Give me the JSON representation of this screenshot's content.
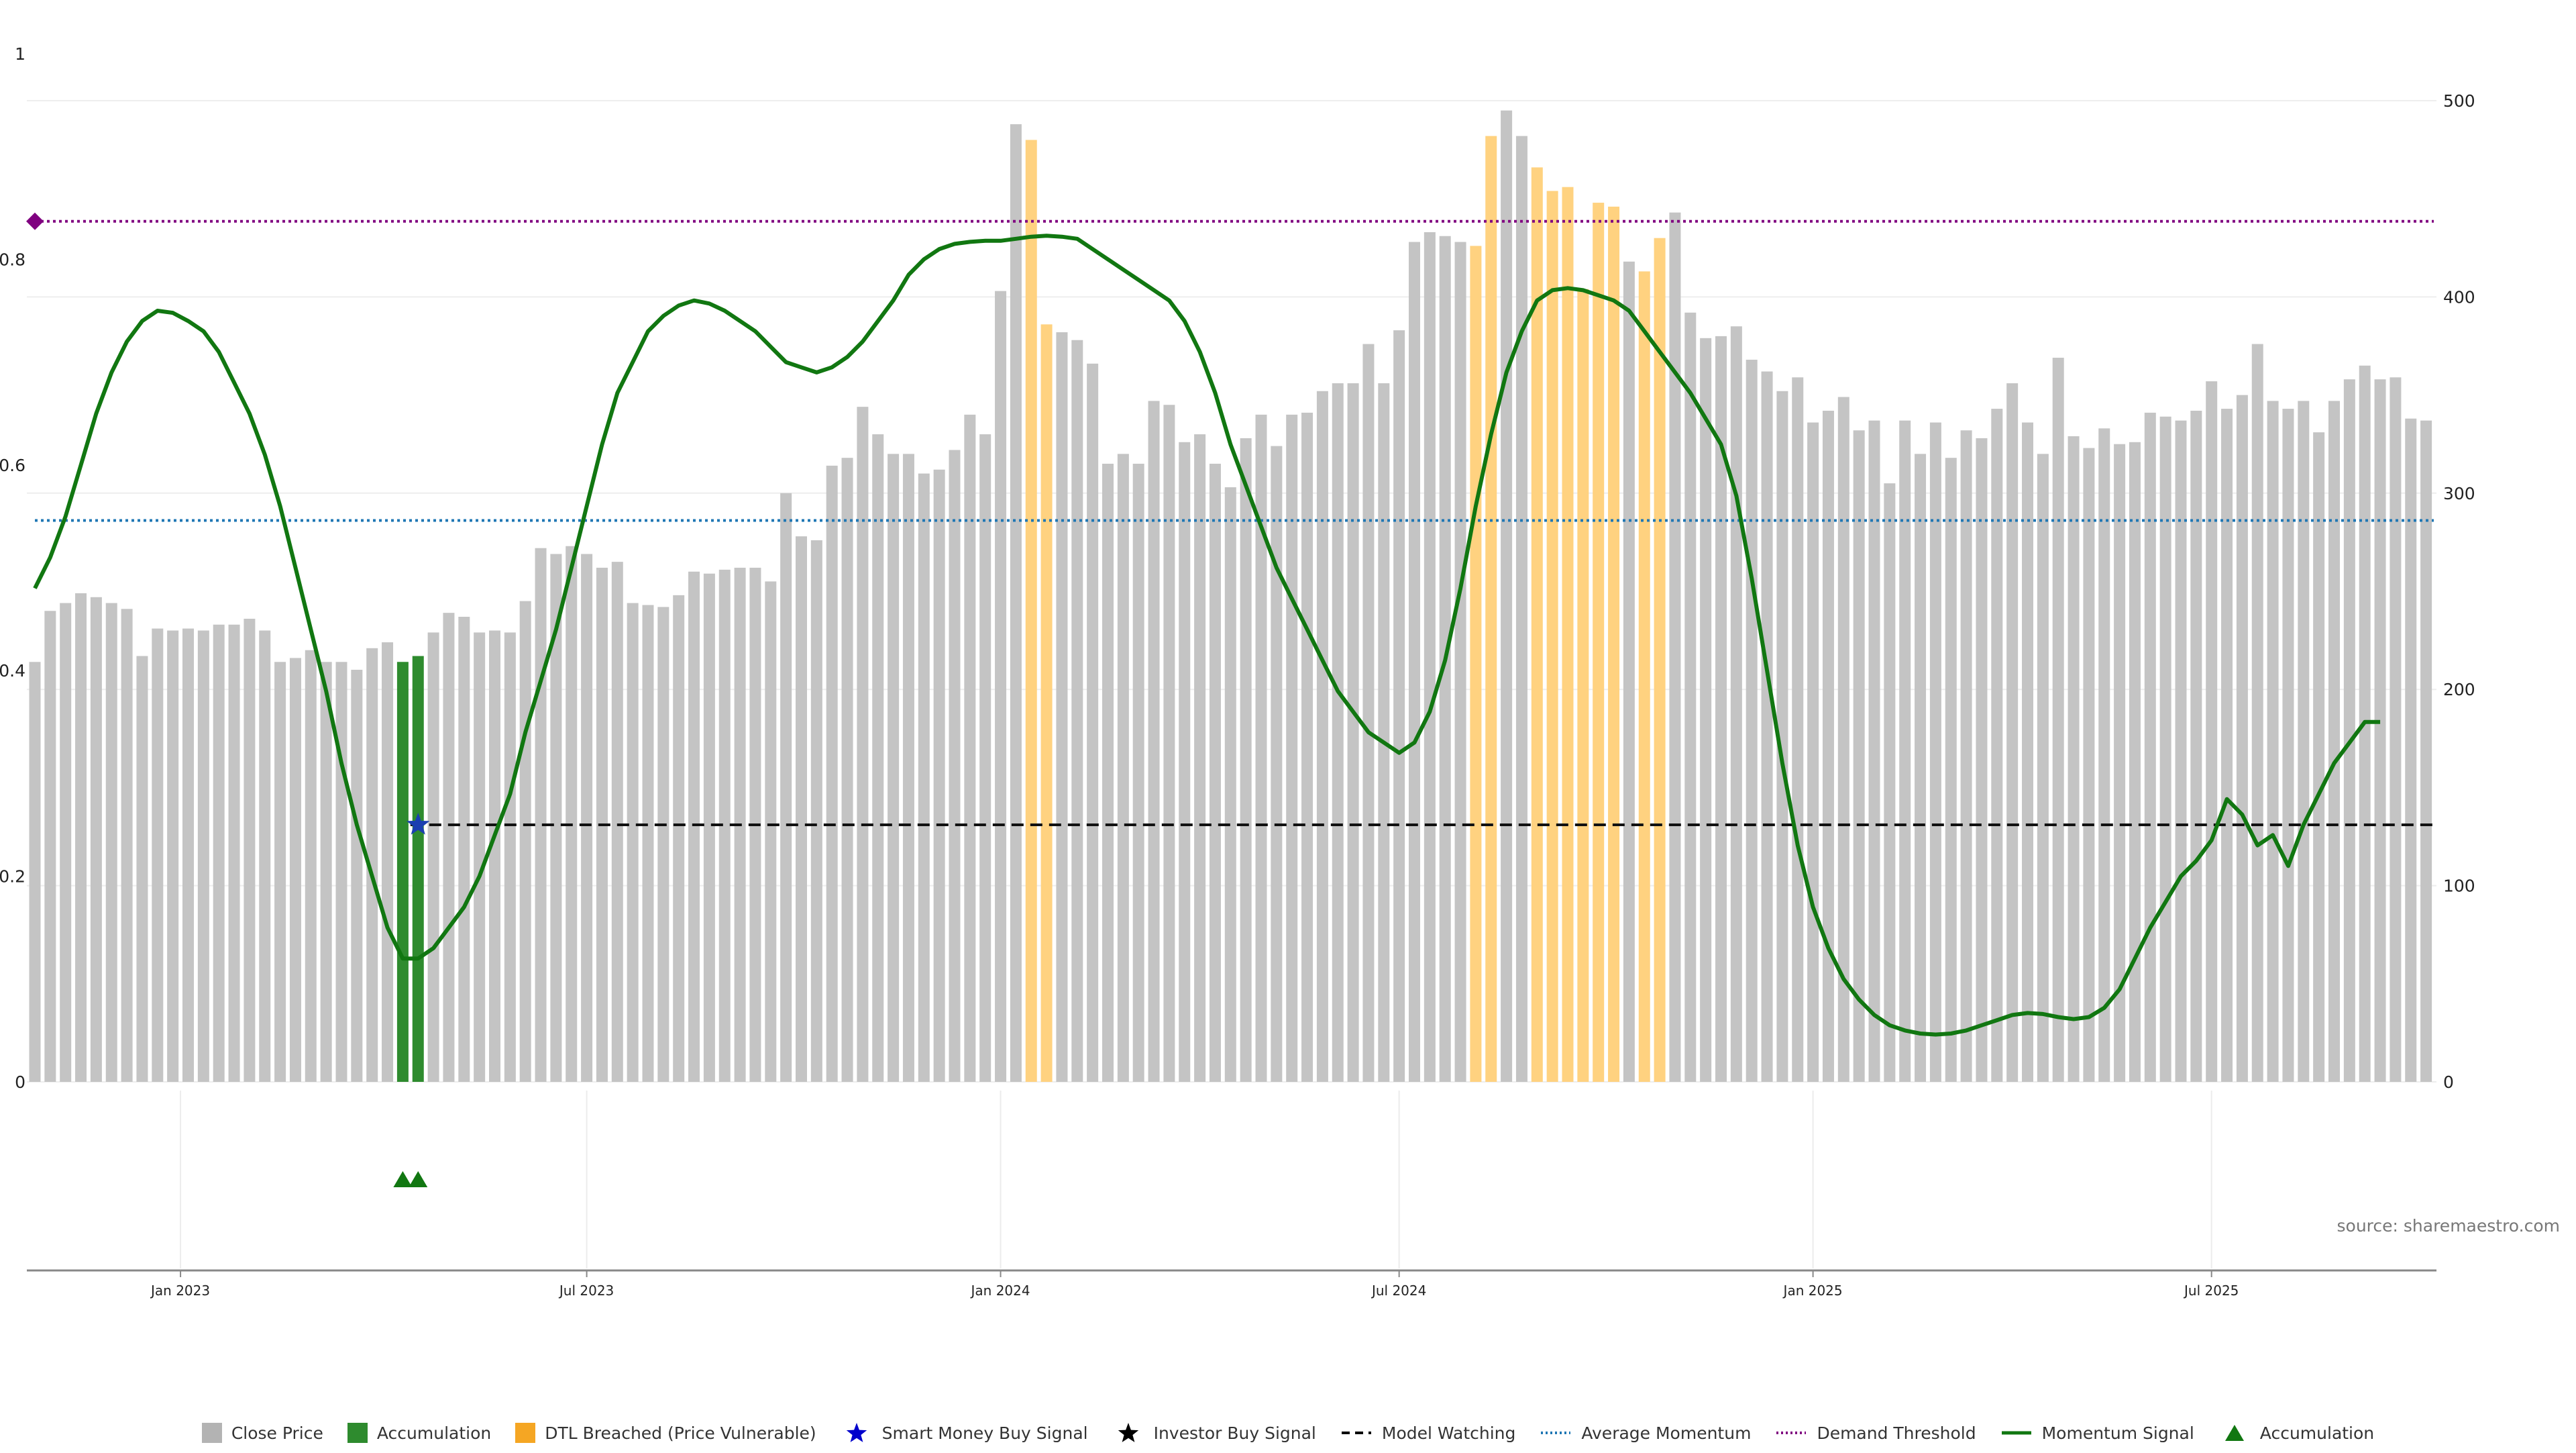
{
  "chart_data": {
    "type": "bar",
    "source": "source: sharemaestro.com",
    "left_axis": {
      "ylim": [
        0,
        1
      ],
      "ticks": [
        "0",
        "0.2",
        "0.4",
        "0.6",
        "0.8",
        "1"
      ]
    },
    "right_axis": {
      "ylim": [
        0,
        500
      ],
      "ticks": [
        "0",
        "100",
        "200",
        "300",
        "400",
        "500"
      ]
    },
    "x_ticks": [
      {
        "label": "Jan 2023",
        "week": 9.5
      },
      {
        "label": "Jul 2023",
        "week": 36
      },
      {
        "label": "Jan 2024",
        "week": 63
      },
      {
        "label": "Jul 2024",
        "week": 89
      },
      {
        "label": "Jan 2025",
        "week": 116
      },
      {
        "label": "Jul 2025",
        "week": 142
      }
    ],
    "close_price_weekly": [
      214,
      240,
      244,
      249,
      247,
      244,
      241,
      217,
      231,
      230,
      231,
      230,
      233,
      233,
      236,
      230,
      214,
      216,
      220,
      214,
      214,
      210,
      221,
      224,
      214,
      217,
      229,
      239,
      237,
      229,
      230,
      229,
      245,
      272,
      269,
      273,
      269,
      262,
      265,
      244,
      243,
      242,
      248,
      260,
      259,
      261,
      262,
      262,
      255,
      300,
      278,
      276,
      314,
      318,
      344,
      330,
      320,
      320,
      310,
      312,
      322,
      340,
      330,
      403,
      488,
      480,
      386,
      382,
      378,
      366,
      315,
      320,
      315,
      347,
      345,
      326,
      330,
      315,
      303,
      328,
      340,
      324,
      340,
      341,
      352,
      356,
      356,
      376,
      356,
      383,
      428,
      433,
      431,
      428,
      426,
      482,
      495,
      482,
      466,
      454,
      456,
      404,
      448,
      446,
      418,
      413,
      430,
      443,
      392,
      379,
      380,
      385,
      368,
      362,
      352,
      359,
      336,
      342,
      349,
      332,
      337,
      305,
      337,
      320,
      336,
      318,
      332,
      328,
      343,
      356,
      336,
      320,
      369,
      329,
      323,
      333,
      325,
      326,
      341,
      339,
      337,
      342,
      357,
      343,
      350,
      376,
      347,
      343,
      347,
      331,
      347,
      358,
      365,
      358,
      359,
      338,
      337
    ],
    "accumulation_weeks": [
      24,
      25
    ],
    "dtl_breached_weeks": [
      65,
      66,
      94,
      95,
      98,
      99,
      100,
      101,
      102,
      103,
      105,
      106
    ],
    "momentum_signal": [
      [
        0,
        0.48
      ],
      [
        1,
        0.51
      ],
      [
        2,
        0.55
      ],
      [
        3,
        0.6
      ],
      [
        4,
        0.65
      ],
      [
        5,
        0.69
      ],
      [
        6,
        0.72
      ],
      [
        7,
        0.74
      ],
      [
        8,
        0.75
      ],
      [
        9,
        0.748
      ],
      [
        10,
        0.74
      ],
      [
        11,
        0.73
      ],
      [
        12,
        0.71
      ],
      [
        13,
        0.68
      ],
      [
        14,
        0.65
      ],
      [
        15,
        0.61
      ],
      [
        16,
        0.56
      ],
      [
        17,
        0.5
      ],
      [
        18,
        0.44
      ],
      [
        19,
        0.38
      ],
      [
        20,
        0.31
      ],
      [
        21,
        0.25
      ],
      [
        22,
        0.2
      ],
      [
        23,
        0.15
      ],
      [
        24,
        0.12
      ],
      [
        25,
        0.12
      ],
      [
        26,
        0.13
      ],
      [
        27,
        0.15
      ],
      [
        28,
        0.17
      ],
      [
        29,
        0.2
      ],
      [
        30,
        0.24
      ],
      [
        31,
        0.28
      ],
      [
        32,
        0.34
      ],
      [
        33,
        0.39
      ],
      [
        34,
        0.44
      ],
      [
        35,
        0.5
      ],
      [
        36,
        0.56
      ],
      [
        37,
        0.62
      ],
      [
        38,
        0.67
      ],
      [
        39,
        0.7
      ],
      [
        40,
        0.73
      ],
      [
        41,
        0.745
      ],
      [
        42,
        0.755
      ],
      [
        43,
        0.76
      ],
      [
        44,
        0.757
      ],
      [
        45,
        0.75
      ],
      [
        46,
        0.74
      ],
      [
        47,
        0.73
      ],
      [
        48,
        0.715
      ],
      [
        49,
        0.7
      ],
      [
        50,
        0.695
      ],
      [
        51,
        0.69
      ],
      [
        52,
        0.695
      ],
      [
        53,
        0.705
      ],
      [
        54,
        0.72
      ],
      [
        55,
        0.74
      ],
      [
        56,
        0.76
      ],
      [
        57,
        0.785
      ],
      [
        58,
        0.8
      ],
      [
        59,
        0.81
      ],
      [
        60,
        0.815
      ],
      [
        61,
        0.817
      ],
      [
        62,
        0.818
      ],
      [
        63,
        0.818
      ],
      [
        64,
        0.82
      ],
      [
        65,
        0.822
      ],
      [
        66,
        0.823
      ],
      [
        67,
        0.822
      ],
      [
        68,
        0.82
      ],
      [
        69,
        0.81
      ],
      [
        70,
        0.8
      ],
      [
        71,
        0.79
      ],
      [
        72,
        0.78
      ],
      [
        73,
        0.77
      ],
      [
        74,
        0.76
      ],
      [
        75,
        0.74
      ],
      [
        76,
        0.71
      ],
      [
        77,
        0.67
      ],
      [
        78,
        0.62
      ],
      [
        79,
        0.58
      ],
      [
        80,
        0.54
      ],
      [
        81,
        0.5
      ],
      [
        82,
        0.47
      ],
      [
        83,
        0.44
      ],
      [
        84,
        0.41
      ],
      [
        85,
        0.38
      ],
      [
        86,
        0.36
      ],
      [
        87,
        0.34
      ],
      [
        88,
        0.33
      ],
      [
        89,
        0.32
      ],
      [
        90,
        0.33
      ],
      [
        91,
        0.36
      ],
      [
        92,
        0.41
      ],
      [
        93,
        0.48
      ],
      [
        94,
        0.56
      ],
      [
        95,
        0.63
      ],
      [
        96,
        0.69
      ],
      [
        97,
        0.73
      ],
      [
        98,
        0.76
      ],
      [
        99,
        0.77
      ],
      [
        100,
        0.772
      ],
      [
        101,
        0.77
      ],
      [
        102,
        0.765
      ],
      [
        103,
        0.76
      ],
      [
        104,
        0.75
      ],
      [
        105,
        0.73
      ],
      [
        106,
        0.71
      ],
      [
        107,
        0.69
      ],
      [
        108,
        0.67
      ],
      [
        109,
        0.645
      ],
      [
        110,
        0.62
      ],
      [
        111,
        0.57
      ],
      [
        112,
        0.49
      ],
      [
        113,
        0.4
      ],
      [
        114,
        0.31
      ],
      [
        115,
        0.23
      ],
      [
        116,
        0.17
      ],
      [
        117,
        0.13
      ],
      [
        118,
        0.1
      ],
      [
        119,
        0.08
      ],
      [
        120,
        0.065
      ],
      [
        121,
        0.055
      ],
      [
        122,
        0.05
      ],
      [
        123,
        0.047
      ],
      [
        124,
        0.046
      ],
      [
        125,
        0.047
      ],
      [
        126,
        0.05
      ],
      [
        127,
        0.055
      ],
      [
        128,
        0.06
      ],
      [
        129,
        0.065
      ],
      [
        130,
        0.067
      ],
      [
        131,
        0.066
      ],
      [
        132,
        0.063
      ],
      [
        133,
        0.061
      ],
      [
        134,
        0.063
      ],
      [
        135,
        0.072
      ],
      [
        136,
        0.09
      ],
      [
        137,
        0.12
      ],
      [
        138,
        0.15
      ],
      [
        139,
        0.175
      ],
      [
        140,
        0.2
      ],
      [
        141,
        0.215
      ],
      [
        142,
        0.235
      ],
      [
        143,
        0.275
      ],
      [
        144,
        0.26
      ],
      [
        145,
        0.23
      ],
      [
        146,
        0.24
      ],
      [
        147,
        0.21
      ],
      [
        148,
        0.25
      ],
      [
        149,
        0.28
      ],
      [
        150,
        0.31
      ],
      [
        151,
        0.33
      ],
      [
        152,
        0.35
      ],
      [
        153,
        0.35
      ]
    ],
    "average_momentum": 0.546,
    "demand_threshold": 0.837,
    "model_watching": {
      "from_week": 24.5,
      "value": 0.25
    },
    "smart_money_buy_signal": {
      "week": 25,
      "value": 0.25
    },
    "accumulation_markers_weeks": [
      24,
      25
    ]
  },
  "legend": [
    {
      "label": "Close Price",
      "kind": "square",
      "color": "#b3b3b3"
    },
    {
      "label": "Accumulation",
      "kind": "square",
      "color": "#2e8b2e"
    },
    {
      "label": "DTL Breached (Price Vulnerable)",
      "kind": "square",
      "color": "#f5a623"
    },
    {
      "label": "Smart Money Buy Signal",
      "kind": "star",
      "color": "#0000cc"
    },
    {
      "label": "Investor Buy Signal",
      "kind": "star",
      "color": "#000000"
    },
    {
      "label": "Model Watching",
      "kind": "dash",
      "color": "#000000"
    },
    {
      "label": "Average Momentum",
      "kind": "dot",
      "color": "#1f77b4"
    },
    {
      "label": "Demand Threshold",
      "kind": "dot",
      "color": "#800080"
    },
    {
      "label": "Momentum Signal",
      "kind": "line",
      "color": "#117711"
    },
    {
      "label": "Accumulation",
      "kind": "triangle",
      "color": "#117711"
    }
  ]
}
